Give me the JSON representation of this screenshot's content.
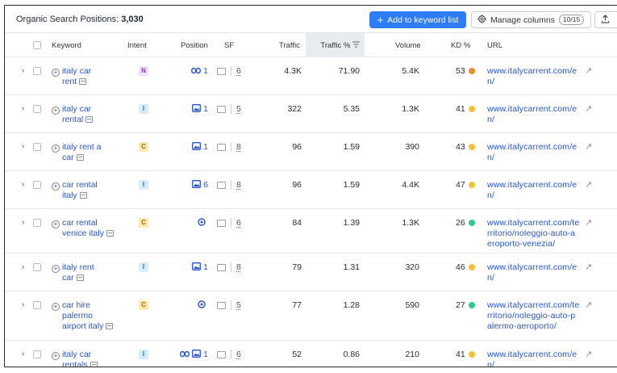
{
  "toolbar": {
    "title_label": "Organic Search Positions:",
    "title_count": "3,030",
    "add_button": "Add to keyword list",
    "manage_columns_button": "Manage columns",
    "columns_badge": "10/15"
  },
  "columns": {
    "keyword": "Keyword",
    "intent": "Intent",
    "position": "Position",
    "sf": "SF",
    "traffic": "Traffic",
    "traffic_pct": "Traffic %",
    "volume": "Volume",
    "kd": "KD %",
    "url": "URL"
  },
  "colors": {
    "accent": "#2e7df6",
    "link": "#2756c8",
    "intent_N_bg": "#f1e2fb",
    "intent_N_fg": "#8a33c9",
    "intent_I_bg": "#d6ecfb",
    "intent_I_fg": "#1b6fb5",
    "intent_C_bg": "#fde9b0",
    "intent_C_fg": "#9a6a00",
    "kd_orange": "#f08c24",
    "kd_yellow": "#f5c034",
    "kd_green": "#2cc98c"
  },
  "rows": [
    {
      "kw1": "italy car",
      "kw2": "rent",
      "kw3": "",
      "intent": "N",
      "pos_icons": [
        "link-icon"
      ],
      "position": "1",
      "sf": "6",
      "traffic": "4.3K",
      "traffic_pct": "71.90",
      "volume": "5.4K",
      "kd": "53",
      "kd_color": "orange",
      "url": [
        "www.italycarrent.com/e",
        "n/"
      ]
    },
    {
      "kw1": "italy car",
      "kw2": "rental",
      "kw3": "",
      "intent": "I",
      "pos_icons": [
        "image-icon"
      ],
      "position": "1",
      "sf": "5",
      "traffic": "322",
      "traffic_pct": "5.35",
      "volume": "1.3K",
      "kd": "41",
      "kd_color": "yellow",
      "url": [
        "www.italycarrent.com/e",
        "n/"
      ]
    },
    {
      "kw1": "italy rent a",
      "kw2": "car",
      "kw3": "",
      "intent": "C",
      "pos_icons": [
        "image-icon"
      ],
      "position": "1",
      "sf": "8",
      "traffic": "96",
      "traffic_pct": "1.59",
      "volume": "390",
      "kd": "43",
      "kd_color": "yellow",
      "url": [
        "www.italycarrent.com/e",
        "n/"
      ]
    },
    {
      "kw1": "car rental",
      "kw2": "italy",
      "kw3": "",
      "intent": "I",
      "pos_icons": [
        "image-icon"
      ],
      "position": "6",
      "sf": "8",
      "traffic": "96",
      "traffic_pct": "1.59",
      "volume": "4.4K",
      "kd": "47",
      "kd_color": "yellow",
      "url": [
        "www.italycarrent.com/e",
        "n/"
      ]
    },
    {
      "kw1": "car rental",
      "kw2": "venice italy",
      "kw3": "",
      "intent": "C",
      "pos_icons": [
        "location-icon"
      ],
      "position": "",
      "sf": "6",
      "traffic": "84",
      "traffic_pct": "1.39",
      "volume": "1.3K",
      "kd": "26",
      "kd_color": "green",
      "url": [
        "www.italycarrent.com/te",
        "rritorio/noleggio-auto-a",
        "eroporto-venezia/"
      ]
    },
    {
      "kw1": "italy rent",
      "kw2": "car",
      "kw3": "",
      "intent": "I",
      "pos_icons": [
        "image-icon"
      ],
      "position": "1",
      "sf": "8",
      "traffic": "79",
      "traffic_pct": "1.31",
      "volume": "320",
      "kd": "46",
      "kd_color": "yellow",
      "url": [
        "www.italycarrent.com/e",
        "n/"
      ]
    },
    {
      "kw1": "car hire",
      "kw2": "palermo",
      "kw3": "airport italy",
      "intent": "C",
      "pos_icons": [
        "location-icon"
      ],
      "position": "",
      "sf": "5",
      "traffic": "77",
      "traffic_pct": "1.28",
      "volume": "590",
      "kd": "27",
      "kd_color": "green",
      "url": [
        "www.italycarrent.com/te",
        "rritorio/noleggio-auto-p",
        "alermo-aeroporto/"
      ]
    },
    {
      "kw1": "italy car",
      "kw2": "rentals",
      "kw3": "",
      "intent": "I",
      "pos_icons": [
        "link-icon",
        "image-icon"
      ],
      "position": "1",
      "sf": "6",
      "traffic": "52",
      "traffic_pct": "0.86",
      "volume": "210",
      "kd": "41",
      "kd_color": "yellow",
      "url": [
        "www.italycarrent.com/e",
        "n/"
      ]
    }
  ]
}
